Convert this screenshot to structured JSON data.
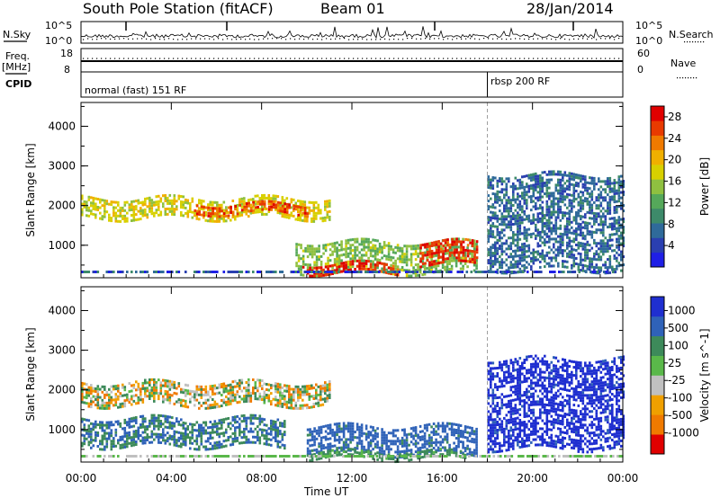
{
  "header": {
    "station": "South Pole Station (fitACF)",
    "beam": "Beam 01",
    "date": "28/Jan/2014"
  },
  "strip": {
    "nsky_label": "N.Sky",
    "nsky_ticks": [
      "10^5",
      "10^0"
    ],
    "nsearch_label": "N.Search",
    "nsearch_ticks": [
      "10^5",
      "10^0"
    ],
    "freq_label_1": "Freq.",
    "freq_label_2": "[MHz]",
    "freq_ticks": [
      "18",
      "8"
    ],
    "nave_label": "Nave",
    "nave_ticks": [
      "60",
      "0"
    ],
    "cpid_label": "CPID",
    "cpid_segments": [
      {
        "label": "normal (fast) 151 RF",
        "start_hour": 0
      },
      {
        "label": "rbsp 200 RF",
        "start_hour": 18
      }
    ]
  },
  "chart_data": [
    {
      "type": "heatmap",
      "title": "",
      "xlabel": "Time UT",
      "ylabel": "Slant Range [km]",
      "xlim": [
        0,
        24
      ],
      "ylim": [
        180,
        4600
      ],
      "x_ticks": [
        "00:00",
        "04:00",
        "08:00",
        "12:00",
        "16:00",
        "20:00",
        "00:00"
      ],
      "y_ticks": [
        1000,
        2000,
        3000,
        4000
      ],
      "colorbar": {
        "label": "Power [dB]",
        "ticks": [
          4,
          8,
          12,
          16,
          20,
          24,
          28
        ],
        "range": [
          0,
          30
        ],
        "colors": [
          "#1f1fe6",
          "#2a3fb0",
          "#2f6a9a",
          "#3d8a6a",
          "#55a85a",
          "#8fc040",
          "#d8d000",
          "#f0b000",
          "#f07a00",
          "#e83a00",
          "#e00000"
        ]
      },
      "features": [
        {
          "desc": "band",
          "t0": 0.0,
          "t1": 11.0,
          "r0": 1700,
          "r1": 2200,
          "value": 18
        },
        {
          "desc": "band",
          "t0": 5.0,
          "t1": 10.0,
          "r0": 1800,
          "r1": 2050,
          "value": 26
        },
        {
          "desc": "band",
          "t0": 9.5,
          "t1": 17.5,
          "r0": 300,
          "r1": 1100,
          "value": 14
        },
        {
          "desc": "band",
          "t0": 9.8,
          "t1": 14.0,
          "r0": 300,
          "r1": 550,
          "value": 28
        },
        {
          "desc": "band",
          "t0": 15.0,
          "t1": 17.5,
          "r0": 500,
          "r1": 1100,
          "value": 28
        },
        {
          "desc": "band",
          "t0": 18.0,
          "t1": 24.0,
          "r0": 400,
          "r1": 2800,
          "value": 6
        }
      ]
    },
    {
      "type": "heatmap",
      "title": "",
      "xlabel": "Time UT",
      "ylabel": "Slant Range [km]",
      "xlim": [
        0,
        24
      ],
      "ylim": [
        180,
        4600
      ],
      "x_ticks": [
        "00:00",
        "04:00",
        "08:00",
        "12:00",
        "16:00",
        "20:00",
        "00:00"
      ],
      "y_ticks": [
        1000,
        2000,
        3000,
        4000
      ],
      "colorbar": {
        "label": "Velocity [m s^-1]",
        "ticks": [
          "1000",
          "500",
          "100",
          "25",
          "-25",
          "-100",
          "-500",
          "-1000"
        ],
        "colors": [
          "#1f2fd0",
          "#2f62b8",
          "#3d8a5a",
          "#5ab84a",
          "#c0c0c0",
          "#f0a000",
          "#f07a00",
          "#e00000"
        ]
      },
      "features": [
        {
          "desc": "band",
          "t0": 0.0,
          "t1": 11.0,
          "r0": 1600,
          "r1": 2200,
          "value": 0
        },
        {
          "desc": "band",
          "t0": 0.0,
          "t1": 9.0,
          "r0": 600,
          "r1": 1300,
          "value": 300
        },
        {
          "desc": "band",
          "t0": 10.0,
          "t1": 17.5,
          "r0": 400,
          "r1": 1100,
          "value": 400
        },
        {
          "desc": "band",
          "t0": 10.0,
          "t1": 17.0,
          "r0": 250,
          "r1": 450,
          "value": 150
        },
        {
          "desc": "band",
          "t0": 18.0,
          "t1": 24.0,
          "r0": 500,
          "r1": 2800,
          "value": 800
        }
      ]
    }
  ]
}
